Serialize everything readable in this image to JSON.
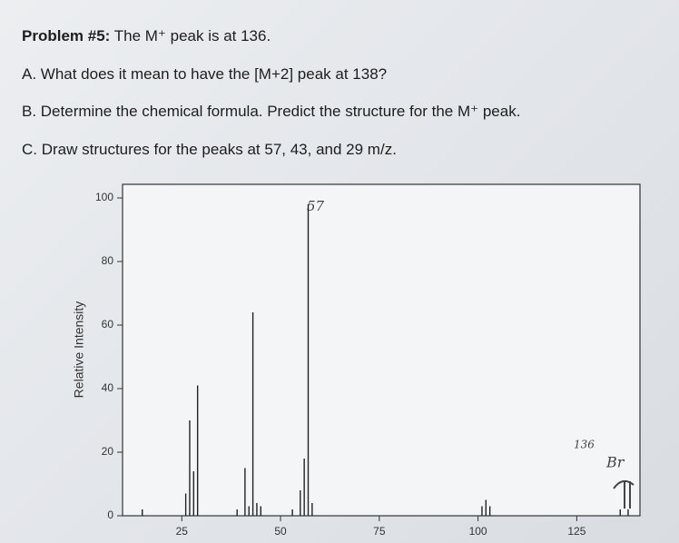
{
  "problem": {
    "label": "Problem #5:",
    "statement": "The M⁺ peak is at 136.",
    "questions": [
      "A. What does it mean to have the [M+2] peak at 138?",
      "B. Determine the chemical formula. Predict the structure for the M⁺ peak.",
      "C. Draw structures for the peaks at 57, 43, and 29 m/z."
    ]
  },
  "chart_data": {
    "type": "spectrum",
    "y_label": "Relative Intensity",
    "x": [
      15,
      26,
      27,
      28,
      29,
      39,
      41,
      42,
      43,
      44,
      45,
      53,
      55,
      56,
      57,
      58,
      101,
      102,
      103,
      136,
      138
    ],
    "values": [
      2,
      7,
      30,
      14,
      41,
      2,
      15,
      3,
      64,
      4,
      3,
      2,
      8,
      18,
      98,
      4,
      3,
      5,
      3,
      2,
      2
    ],
    "xlim": [
      10,
      141
    ],
    "xticks": [
      25,
      50,
      75,
      100,
      125
    ],
    "ylim": [
      0,
      100
    ],
    "yticks": [
      0,
      20,
      40,
      60,
      80,
      100
    ],
    "color": "#222222",
    "annotations": [
      "57",
      "136",
      "Br"
    ]
  }
}
